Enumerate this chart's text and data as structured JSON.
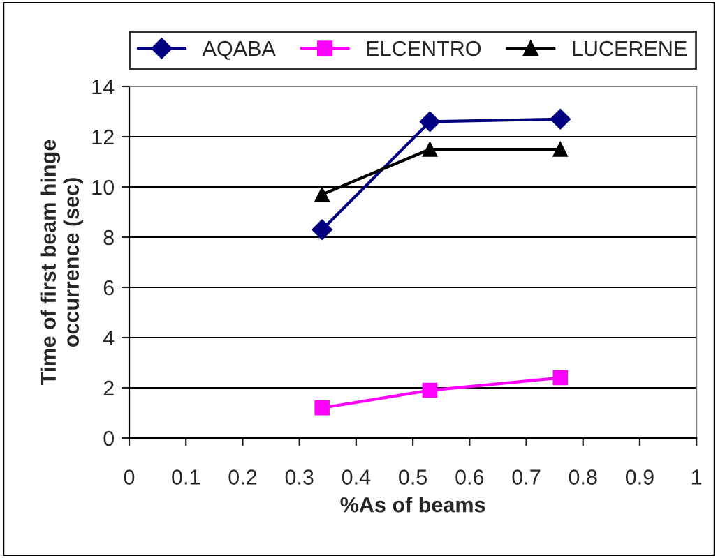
{
  "chart_data": {
    "type": "line",
    "xlabel": "%As of beams",
    "ylabel": "Time of first beam hinge\noccurrence (sec)",
    "x": [
      0.34,
      0.53,
      0.76
    ],
    "series": [
      {
        "name": "AQABA",
        "color": "#000080",
        "values": [
          8.3,
          12.6,
          12.7
        ],
        "marker": "diamond"
      },
      {
        "name": "ELCENTRO",
        "color": "#ff00ff",
        "values": [
          1.2,
          1.9,
          2.4
        ],
        "marker": "square"
      },
      {
        "name": "LUCERENE",
        "color": "#000000",
        "values": [
          9.7,
          11.5,
          11.5
        ],
        "marker": "triangle"
      }
    ],
    "xlim": [
      0,
      1
    ],
    "xticks": [
      0,
      0.1,
      0.2,
      0.3,
      0.4,
      0.5,
      0.6,
      0.7,
      0.8,
      0.9,
      1
    ],
    "ylim": [
      0,
      14
    ],
    "yticks": [
      0,
      2,
      4,
      6,
      8,
      10,
      12,
      14
    ],
    "grid": "y",
    "legend": "top",
    "line_style": "solid"
  }
}
